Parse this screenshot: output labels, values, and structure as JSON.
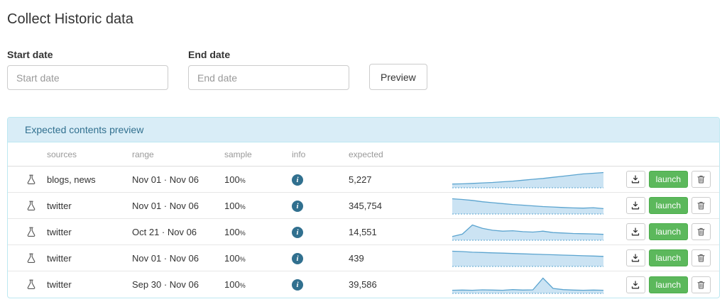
{
  "page": {
    "title": "Collect Historic data"
  },
  "form": {
    "start_date": {
      "label": "Start date",
      "placeholder": "Start date",
      "value": ""
    },
    "end_date": {
      "label": "End date",
      "placeholder": "End date",
      "value": ""
    },
    "preview_label": "Preview"
  },
  "panel": {
    "title": "Expected contents preview",
    "columns": {
      "sources": "sources",
      "range": "range",
      "sample": "sample",
      "info": "info",
      "expected": "expected"
    },
    "sample_unit": "%",
    "actions": {
      "launch_label": "launch"
    },
    "rows": [
      {
        "sources": "blogs, news",
        "range": "Nov 01 · Nov 06",
        "sample": "100",
        "expected": "5,227",
        "spark": [
          1.5,
          1.6,
          1.8,
          2.0,
          2.2,
          2.5,
          2.8,
          3.2,
          3.6,
          4.0,
          4.5,
          5.0,
          5.5,
          6.0,
          6.3,
          6.6
        ]
      },
      {
        "sources": "twitter",
        "range": "Nov 01 · Nov 06",
        "sample": "100",
        "expected": "345,754",
        "spark": [
          6.5,
          6.2,
          5.8,
          5.2,
          4.8,
          4.4,
          4.0,
          3.7,
          3.4,
          3.1,
          2.9,
          2.7,
          2.5,
          2.4,
          2.6,
          2.2
        ]
      },
      {
        "sources": "twitter",
        "range": "Oct 21 · Nov 06",
        "sample": "100",
        "expected": "14,551",
        "spark": [
          1.5,
          2.5,
          6.5,
          5.0,
          4.2,
          3.8,
          4.0,
          3.6,
          3.4,
          3.8,
          3.2,
          3.0,
          2.8,
          2.7,
          2.6,
          2.4
        ]
      },
      {
        "sources": "twitter",
        "range": "Nov 01 · Nov 06",
        "sample": "100",
        "expected": "439",
        "spark": [
          4.6,
          4.5,
          4.3,
          4.2,
          4.1,
          4.0,
          3.9,
          3.8,
          3.7,
          3.6,
          3.5,
          3.4,
          3.3,
          3.2,
          3.1,
          3.0
        ]
      },
      {
        "sources": "twitter",
        "range": "Sep 30 · Nov 06",
        "sample": "100",
        "expected": "39,586",
        "spark": [
          1.2,
          1.3,
          1.2,
          1.4,
          1.3,
          1.2,
          1.5,
          1.3,
          1.4,
          6.5,
          2.0,
          1.5,
          1.3,
          1.2,
          1.3,
          1.2
        ]
      }
    ]
  },
  "colors": {
    "panel_header_bg": "#d9edf7",
    "panel_border": "#bce8f1",
    "panel_header_text": "#31708f",
    "launch_green": "#5cb85c",
    "info_blue": "#31708f",
    "spark_line": "#5ba4cf",
    "spark_fill": "#cbe3f3"
  }
}
